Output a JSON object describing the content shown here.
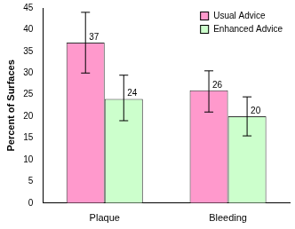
{
  "chart_data": {
    "type": "bar",
    "categories": [
      "Plaque",
      "Bleeding"
    ],
    "y_label": "Percent of Surfaces",
    "series": [
      {
        "name": "Usual Advice",
        "color": "#ff99cc",
        "values": [
          37,
          26
        ],
        "error_low": [
          30,
          21
        ],
        "error_high": [
          44,
          30.5
        ]
      },
      {
        "name": "Enhanced Advice",
        "color": "#ccffcc",
        "values": [
          24,
          20
        ],
        "error_low": [
          19,
          15.5
        ],
        "error_high": [
          29.5,
          24.5
        ]
      }
    ],
    "ylim": [
      0,
      45
    ],
    "yticks": [
      0,
      5,
      10,
      15,
      20,
      25,
      30,
      35,
      40,
      45
    ],
    "grid": false,
    "legend": "upper right",
    "data_labels": true
  }
}
